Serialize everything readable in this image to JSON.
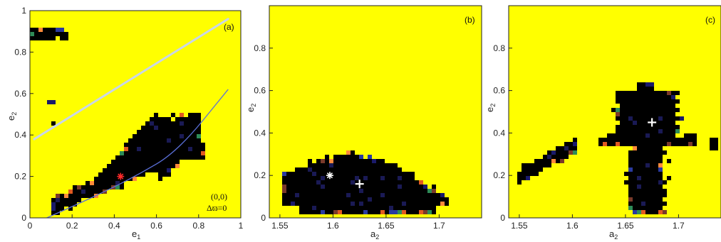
{
  "colors": {
    "background": "#ffff00",
    "chaotic": "#000000",
    "frame": "#222222",
    "cyan_line": "#c9d6e8",
    "blue_curve": "#5a6fd8",
    "marker": "#ffffff",
    "red_marker": "#ff2a2a",
    "edge_orange": "#ff8a3a",
    "edge_green": "#2e8b57",
    "edge_blue": "#2a3aa0"
  },
  "chart_data": [
    {
      "type": "heatmap",
      "panel_label": "(a)",
      "xlabel": "e1",
      "ylabel": "e2",
      "xlim": [
        0,
        1
      ],
      "ylim": [
        0,
        1
      ],
      "xticks": [
        "0",
        "0.2",
        "0.4",
        "0.6",
        "0.8",
        "1"
      ],
      "yticks": [
        "0",
        "0.2",
        "0.4",
        "0.6",
        "0.8",
        "1"
      ],
      "annotation_line1": "(0,0)",
      "annotation_line2": "Δϖ=0",
      "chaotic_regions": [
        {
          "shape": "band",
          "from": [
            0.1,
            0.02
          ],
          "to": [
            0.8,
            0.35
          ]
        },
        {
          "shape": "patch",
          "center": [
            0.04,
            0.88
          ]
        }
      ],
      "overlay_lines": [
        {
          "kind": "straight",
          "x": [
            0.02,
            0.94
          ],
          "y": [
            0.38,
            0.96
          ]
        },
        {
          "kind": "curve",
          "x": [
            0.08,
            0.3,
            0.5,
            0.7,
            0.94
          ],
          "y": [
            0.0,
            0.1,
            0.2,
            0.32,
            0.62
          ]
        }
      ],
      "markers": [
        {
          "symbol": "*",
          "x": 0.43,
          "y": 0.2
        }
      ]
    },
    {
      "type": "heatmap",
      "panel_label": "(b)",
      "xlabel": "a2",
      "ylabel": "e2",
      "xlim": [
        1.54,
        1.74
      ],
      "ylim": [
        0,
        1
      ],
      "xticks": [
        "1.55",
        "1.6",
        "1.65",
        "1.7"
      ],
      "yticks": [
        "0",
        "0.2",
        "0.4",
        "0.6",
        "0.8"
      ],
      "chaotic_regions": [
        {
          "shape": "blob",
          "center": [
            1.63,
            0.15
          ],
          "xrange": [
            1.555,
            1.71
          ],
          "yrange": [
            0.0,
            0.28
          ]
        }
      ],
      "markers": [
        {
          "symbol": "*",
          "x": 1.597,
          "y": 0.2
        },
        {
          "symbol": "+",
          "x": 1.625,
          "y": 0.16
        }
      ]
    },
    {
      "type": "heatmap",
      "panel_label": "(c)",
      "xlabel": "a2",
      "ylabel": "e2",
      "xlim": [
        1.54,
        1.74
      ],
      "ylim": [
        0,
        1
      ],
      "xticks": [
        "1.55",
        "1.6",
        "1.65",
        "1.7"
      ],
      "yticks": [
        "0",
        "0.2",
        "0.4",
        "0.6",
        "0.8"
      ],
      "chaotic_regions": [
        {
          "shape": "cross",
          "center": [
            1.675,
            0.45
          ],
          "xrange": [
            1.64,
            1.74
          ],
          "yrange": [
            0.0,
            0.62
          ]
        },
        {
          "shape": "patch",
          "center": [
            1.555,
            0.2
          ]
        }
      ],
      "markers": [
        {
          "symbol": "+",
          "x": 1.675,
          "y": 0.45
        }
      ]
    }
  ]
}
